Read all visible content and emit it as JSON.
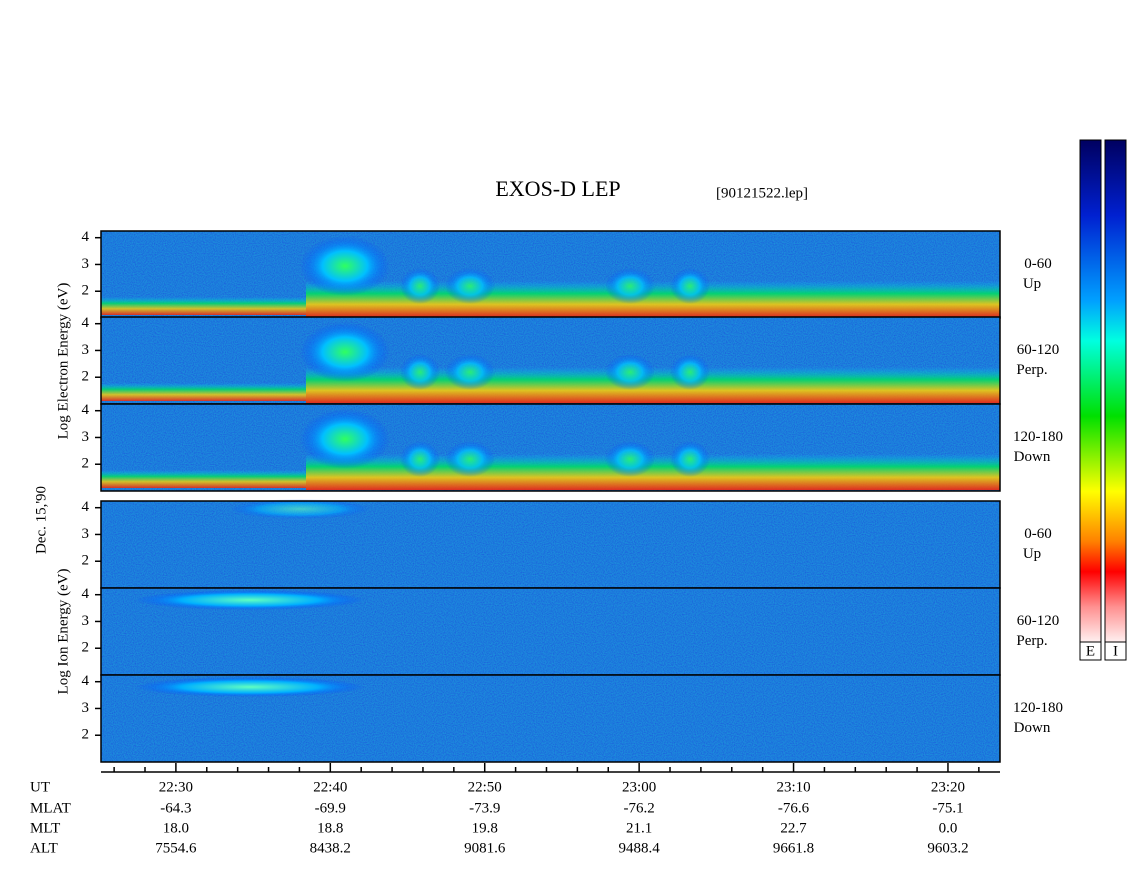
{
  "title": "EXOS-D LEP",
  "file": "[90121522.lep]",
  "date": "Dec. 15,'90",
  "groups": [
    {
      "ylabel": "Log Electron Energy (eV)",
      "panels": [
        {
          "pitch": "0-60",
          "dir": "Up"
        },
        {
          "pitch": "60-120",
          "dir": "Perp."
        },
        {
          "pitch": "120-180",
          "dir": "Down"
        }
      ]
    },
    {
      "ylabel": "Log Ion Energy (eV)",
      "panels": [
        {
          "pitch": "0-60",
          "dir": "Up"
        },
        {
          "pitch": "60-120",
          "dir": "Perp."
        },
        {
          "pitch": "120-180",
          "dir": "Down"
        }
      ]
    }
  ],
  "energy_axis": {
    "ylim": [
      1,
      4.25
    ],
    "yticks": [
      2,
      3,
      4
    ]
  },
  "time_axis": {
    "xlim": [
      25.15,
      83.37
    ],
    "xticks": [
      {
        "value": 30,
        "label": "22:30"
      },
      {
        "value": 40,
        "label": "22:40"
      },
      {
        "value": 50,
        "label": "22:50"
      },
      {
        "value": 60,
        "label": "23:00"
      },
      {
        "value": 70,
        "label": "23:10"
      },
      {
        "value": 80,
        "label": "23:20"
      }
    ],
    "minor_xticks": [
      26,
      28,
      32,
      34,
      36,
      38,
      42,
      44,
      46,
      48,
      52,
      54,
      56,
      58,
      62,
      64,
      66,
      68,
      72,
      74,
      76,
      78,
      82
    ]
  },
  "orbit_table": {
    "ut_label": "UT",
    "rows": [
      {
        "name": "MLAT",
        "values": [
          "-64.3",
          "-69.9",
          "-73.9",
          "-76.2",
          "-76.6",
          "-75.1"
        ]
      },
      {
        "name": "MLT",
        "values": [
          "18.0",
          "18.8",
          "19.8",
          "21.1",
          "22.7",
          "0.0"
        ]
      },
      {
        "name": "ALT",
        "values": [
          "7554.6",
          "8438.2",
          "9081.6",
          "9488.4",
          "9661.8",
          "9603.2"
        ]
      }
    ]
  },
  "colorbars": [
    "E",
    "I"
  ]
}
